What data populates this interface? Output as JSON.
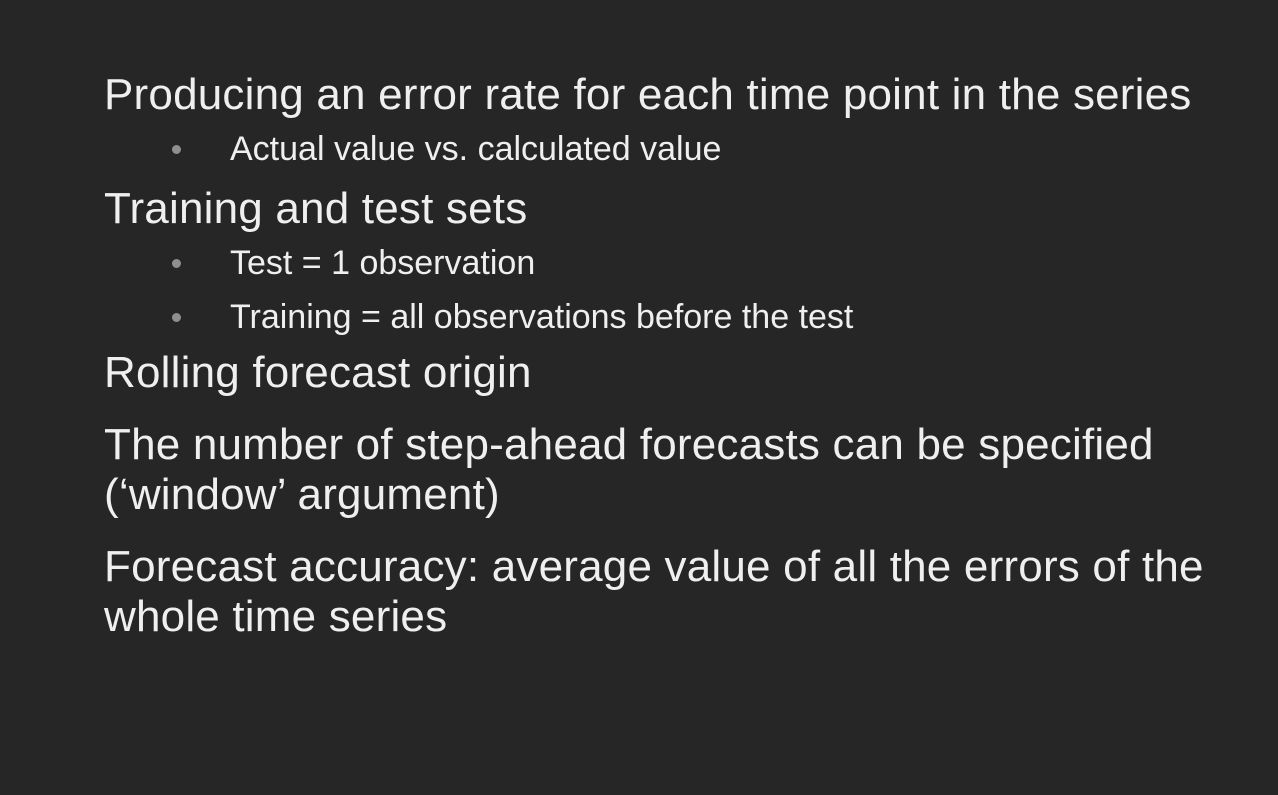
{
  "slide": {
    "bullets": [
      {
        "text": "Producing an error rate for each time point in the series",
        "sub": [
          "Actual value vs. calculated value"
        ]
      },
      {
        "text": "Training and test sets",
        "sub": [
          "Test = 1 observation",
          "Training = all observations before the test"
        ]
      },
      {
        "text": "Rolling forecast origin",
        "sub": []
      },
      {
        "text": "The number of step-ahead forecasts can be specified (‘window’ argument)",
        "sub": []
      },
      {
        "text": "Forecast accuracy: average value of all the errors of the whole time series",
        "sub": []
      }
    ]
  }
}
